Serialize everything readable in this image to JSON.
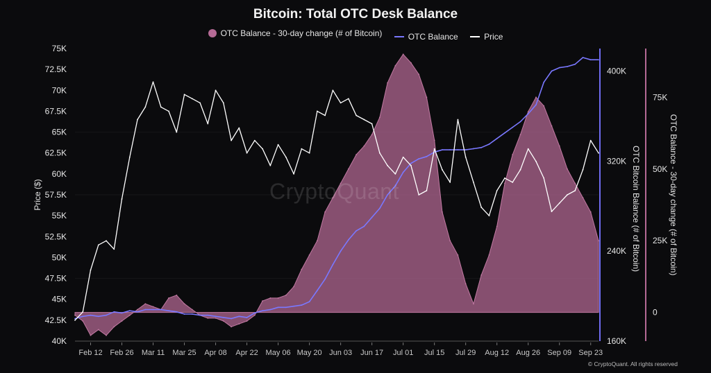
{
  "title": "Bitcoin: Total OTC Desk Balance",
  "legend": {
    "items": [
      {
        "label": "OTC Balance - 30-day change (# of Bitcoin)",
        "color": "#b56a95",
        "kind": "dot"
      },
      {
        "label": "OTC Balance",
        "color": "#7a78ff",
        "kind": "line"
      },
      {
        "label": "Price",
        "color": "#ffffff",
        "kind": "line"
      }
    ]
  },
  "watermark": "CryptoQuant",
  "copyright": "© CryptoQuant. All rights reserved",
  "chart_data": {
    "type": "line",
    "title": "Bitcoin: Total OTC Desk Balance",
    "x_ticks": [
      "Feb 12",
      "Feb 26",
      "Mar 11",
      "Mar 25",
      "Apr 08",
      "Apr 22",
      "May 06",
      "May 20",
      "Jun 03",
      "Jun 17",
      "Jul 01",
      "Jul 15",
      "Jul 29",
      "Aug 12",
      "Aug 26",
      "Sep 09",
      "Sep 23"
    ],
    "axes": {
      "price": {
        "label": "Price ($)",
        "ticks": [
          "40K",
          "42.5K",
          "45K",
          "47.5K",
          "50K",
          "52.5K",
          "55K",
          "57.5K",
          "60K",
          "62.5K",
          "65K",
          "67.5K",
          "70K",
          "72.5K",
          "75K"
        ],
        "range": [
          40000,
          75000
        ]
      },
      "otc_balance": {
        "label": "OTC Bitcoin Balance (# of Bitcoin)",
        "ticks": [
          "160K",
          "240K",
          "320K",
          "400K"
        ],
        "range": [
          160000,
          420000
        ]
      },
      "change": {
        "label": "OTC Balance - 30-day change (# of Bitcoin)",
        "ticks": [
          "0",
          "25K",
          "50K",
          "75K"
        ],
        "range": [
          -10000,
          92000
        ]
      }
    },
    "x": [
      "Feb 06",
      "Feb 09",
      "Feb 12",
      "Feb 15",
      "Feb 19",
      "Feb 22",
      "Feb 26",
      "Feb 29",
      "Mar 04",
      "Mar 07",
      "Mar 11",
      "Mar 14",
      "Mar 18",
      "Mar 21",
      "Mar 25",
      "Mar 28",
      "Apr 01",
      "Apr 04",
      "Apr 08",
      "Apr 11",
      "Apr 15",
      "Apr 18",
      "Apr 22",
      "Apr 25",
      "Apr 29",
      "May 02",
      "May 06",
      "May 09",
      "May 13",
      "May 16",
      "May 20",
      "May 23",
      "May 27",
      "May 30",
      "Jun 03",
      "Jun 06",
      "Jun 10",
      "Jun 13",
      "Jun 17",
      "Jun 20",
      "Jun 24",
      "Jun 27",
      "Jul 01",
      "Jul 04",
      "Jul 08",
      "Jul 11",
      "Jul 15",
      "Jul 18",
      "Jul 22",
      "Jul 25",
      "Jul 29",
      "Aug 01",
      "Aug 05",
      "Aug 08",
      "Aug 12",
      "Aug 15",
      "Aug 19",
      "Aug 22",
      "Aug 26",
      "Aug 29",
      "Sep 02",
      "Sep 05",
      "Sep 09",
      "Sep 12",
      "Sep 16",
      "Sep 19",
      "Sep 23",
      "Sep 26"
    ],
    "series": [
      {
        "name": "Price",
        "axis": "price",
        "color": "#ffffff",
        "style": "line",
        "values": [
          42500,
          43500,
          48500,
          51500,
          52000,
          51000,
          57000,
          62000,
          66500,
          68000,
          71000,
          68000,
          67500,
          65000,
          69500,
          69000,
          68500,
          66000,
          70000,
          68500,
          64000,
          65500,
          62500,
          64000,
          63000,
          61000,
          63500,
          62000,
          60000,
          63000,
          62500,
          67500,
          67000,
          70000,
          68500,
          69000,
          67000,
          66500,
          66000,
          62500,
          61000,
          60000,
          62000,
          61000,
          57500,
          58000,
          63000,
          60500,
          59000,
          66500,
          62000,
          59000,
          56000,
          55000,
          58000,
          59500,
          59000,
          60500,
          63000,
          61500,
          59500,
          55500,
          56500,
          57500,
          58000,
          60500,
          64000,
          62500
        ]
      },
      {
        "name": "OTC Balance",
        "axis": "otc_balance",
        "color": "#7a78ff",
        "style": "line",
        "values": [
          180000,
          182000,
          183000,
          182000,
          183000,
          186000,
          185000,
          187000,
          186000,
          188000,
          188000,
          188000,
          187000,
          186000,
          184000,
          184000,
          183000,
          183000,
          182000,
          181000,
          180000,
          182000,
          181000,
          185000,
          187000,
          188000,
          190000,
          190000,
          191000,
          192000,
          195000,
          205000,
          215000,
          228000,
          240000,
          250000,
          258000,
          262000,
          270000,
          278000,
          290000,
          298000,
          310000,
          318000,
          322000,
          324000,
          328000,
          330000,
          330000,
          330000,
          330000,
          331000,
          332000,
          335000,
          340000,
          345000,
          350000,
          355000,
          362000,
          370000,
          390000,
          400000,
          403000,
          404000,
          406000,
          412000,
          410000,
          410000
        ]
      },
      {
        "name": "OTC Balance - 30-day change (# of Bitcoin)",
        "axis": "change",
        "color": "#b56a95",
        "style": "area",
        "values": [
          -1000,
          -3000,
          -8000,
          -6000,
          -8000,
          -5000,
          -3000,
          -1000,
          1000,
          3000,
          2000,
          1000,
          5000,
          6000,
          3000,
          1000,
          -1000,
          -2000,
          -2000,
          -3000,
          -5000,
          -4000,
          -3000,
          -1000,
          4000,
          5000,
          5000,
          6000,
          9000,
          15000,
          20000,
          25000,
          35000,
          40000,
          45000,
          50000,
          55000,
          58000,
          62000,
          68000,
          80000,
          86000,
          90000,
          87000,
          83000,
          75000,
          60000,
          35000,
          25000,
          20000,
          10000,
          3000,
          13000,
          20000,
          30000,
          45000,
          55000,
          62000,
          70000,
          75000,
          72000,
          65000,
          58000,
          50000,
          45000,
          40000,
          35000,
          25000
        ]
      }
    ],
    "legend_position": "top"
  }
}
